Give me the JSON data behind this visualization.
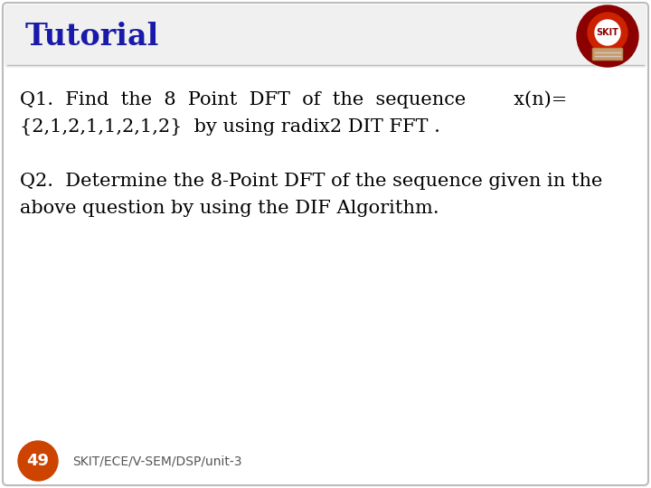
{
  "title": "Tutorial",
  "title_color": "#1a1aaa",
  "title_fontsize": 24,
  "q1_line1": "Q1.  Find  the  8  Point  DFT  of  the  sequence        x(n)=",
  "q1_line2": "{2,1,2,1,1,2,1,2}  by using radix2 DIT FFT .",
  "q2_line1": "Q2.  Determine the 8-Point DFT of the sequence given in the",
  "q2_line2": "above question by using the DIF Algorithm.",
  "footer_num": "49",
  "footer_text": "SKIT/ECE/V-SEM/DSP/unit-3",
  "bg_color": "#ffffff",
  "border_color": "#bbbbbb",
  "text_color": "#000000",
  "footer_circle_color": "#cc4400",
  "body_fontsize": 15,
  "footer_fontsize": 10,
  "title_bar_color": "#f0f0f0"
}
